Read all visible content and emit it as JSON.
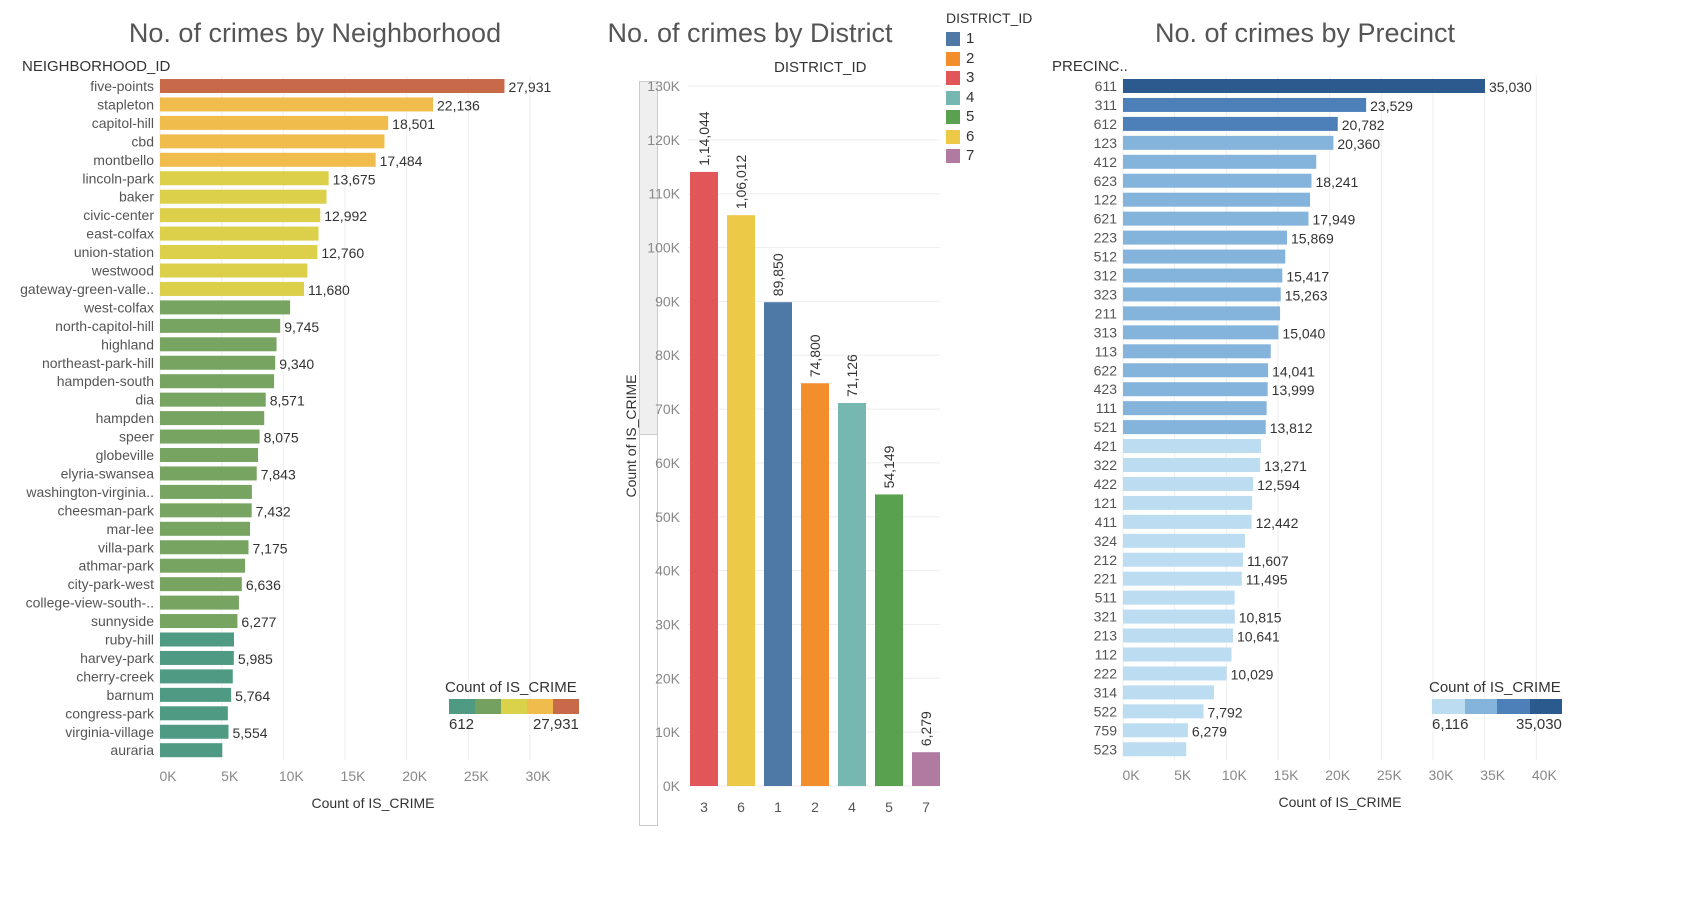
{
  "chart_data": [
    {
      "type": "bar",
      "orientation": "horizontal",
      "title": "No. of crimes by Neighborhood",
      "row_header": "NEIGHBORHOOD_ID",
      "xlabel": "Count of IS_CRIME",
      "xlim": [
        0,
        33000
      ],
      "x_ticks": [
        "0K",
        "5K",
        "10K",
        "15K",
        "20K",
        "25K",
        "30K"
      ],
      "categories": [
        "five-points",
        "stapleton",
        "capitol-hill",
        "cbd",
        "montbello",
        "lincoln-park",
        "baker",
        "civic-center",
        "east-colfax",
        "union-station",
        "westwood",
        "gateway-green-valle..",
        "west-colfax",
        "north-capitol-hill",
        "highland",
        "northeast-park-hill",
        "hampden-south",
        "dia",
        "hampden",
        "speer",
        "globeville",
        "elyria-swansea",
        "washington-virginia..",
        "cheesman-park",
        "mar-lee",
        "villa-park",
        "athmar-park",
        "city-park-west",
        "college-view-south-..",
        "sunnyside",
        "ruby-hill",
        "harvey-park",
        "cherry-creek",
        "barnum",
        "congress-park",
        "virginia-village",
        "auraria"
      ],
      "values": [
        27931,
        22136,
        18501,
        18200,
        17484,
        13675,
        13500,
        12992,
        12850,
        12760,
        11950,
        11680,
        10550,
        9745,
        9450,
        9340,
        9250,
        8571,
        8450,
        8075,
        7950,
        7843,
        7450,
        7432,
        7300,
        7175,
        6900,
        6636,
        6400,
        6277,
        6000,
        5985,
        5900,
        5764,
        5500,
        5554,
        5050
      ],
      "data_labels": [
        "27,931",
        "22,136",
        "18,501",
        "",
        "17,484",
        "13,675",
        "",
        "12,992",
        "",
        "12,760",
        "",
        "11,680",
        "",
        "9,745",
        "",
        "9,340",
        "",
        "8,571",
        "",
        "8,075",
        "",
        "7,843",
        "",
        "7,432",
        "",
        "7,175",
        "",
        "6,636",
        "",
        "6,277",
        "",
        "5,985",
        "",
        "5,764",
        "",
        "5,554",
        ""
      ],
      "color_legend": {
        "title": "Count of IS_CRIME",
        "min_label": "612",
        "max_label": "27,931",
        "colors": [
          "#4e9a82",
          "#74a060",
          "#d9d24a",
          "#f0bc4c",
          "#c86a4a"
        ]
      }
    },
    {
      "type": "bar",
      "orientation": "vertical",
      "title": "No. of crimes by District",
      "column_header": "DISTRICT_ID",
      "ylabel": "Count of IS_CRIME",
      "ylim": [
        0,
        130000
      ],
      "y_ticks": [
        "0K",
        "10K",
        "20K",
        "30K",
        "40K",
        "50K",
        "60K",
        "70K",
        "80K",
        "90K",
        "100K",
        "110K",
        "120K",
        "130K"
      ],
      "categories": [
        "3",
        "6",
        "1",
        "2",
        "4",
        "5",
        "7"
      ],
      "values": [
        114044,
        106012,
        89850,
        74800,
        71126,
        54149,
        6279
      ],
      "data_labels": [
        "1,14,044",
        "1,06,012",
        "89,850",
        "74,800",
        "71,126",
        "54,149",
        "6,279"
      ],
      "colors": [
        "#e15759",
        "#edc948",
        "#4e79a7",
        "#f28e2b",
        "#76b7b2",
        "#59a14f",
        "#b07aa1"
      ],
      "legend": {
        "title": "DISTRICT_ID",
        "items": [
          {
            "label": "1",
            "color": "#4e79a7"
          },
          {
            "label": "2",
            "color": "#f28e2b"
          },
          {
            "label": "3",
            "color": "#e15759"
          },
          {
            "label": "4",
            "color": "#76b7b2"
          },
          {
            "label": "5",
            "color": "#59a14f"
          },
          {
            "label": "6",
            "color": "#edc948"
          },
          {
            "label": "7",
            "color": "#b07aa1"
          }
        ]
      }
    },
    {
      "type": "bar",
      "orientation": "horizontal",
      "title": "No. of crimes by Precinct",
      "row_header": "PRECINC..",
      "xlabel": "Count of IS_CRIME",
      "xlim": [
        0,
        42000
      ],
      "x_ticks": [
        "0K",
        "5K",
        "10K",
        "15K",
        "20K",
        "25K",
        "30K",
        "35K",
        "40K"
      ],
      "categories": [
        "611",
        "311",
        "612",
        "123",
        "412",
        "623",
        "122",
        "621",
        "223",
        "512",
        "312",
        "323",
        "211",
        "313",
        "113",
        "622",
        "423",
        "111",
        "521",
        "421",
        "322",
        "422",
        "121",
        "411",
        "324",
        "212",
        "221",
        "511",
        "321",
        "213",
        "112",
        "222",
        "314",
        "522",
        "759",
        "523"
      ],
      "values": [
        35030,
        23529,
        20782,
        20360,
        18700,
        18241,
        18100,
        17949,
        15869,
        15700,
        15417,
        15263,
        15200,
        15040,
        14300,
        14041,
        13999,
        13900,
        13812,
        13350,
        13271,
        12594,
        12500,
        12442,
        11800,
        11607,
        11495,
        10800,
        10815,
        10641,
        10500,
        10029,
        8800,
        7792,
        6279,
        6116
      ],
      "data_labels": [
        "35,030",
        "23,529",
        "20,782",
        "20,360",
        "",
        "18,241",
        "",
        "17,949",
        "15,869",
        "",
        "15,417",
        "15,263",
        "",
        "15,040",
        "",
        "14,041",
        "13,999",
        "",
        "13,812",
        "",
        "13,271",
        "12,594",
        "",
        "12,442",
        "",
        "11,607",
        "11,495",
        "",
        "10,815",
        "10,641",
        "",
        "10,029",
        "",
        "7,792",
        "6,279",
        ""
      ],
      "color_legend": {
        "title": "Count of IS_CRIME",
        "min_label": "6,116",
        "max_label": "35,030",
        "colors": [
          "#bcdcf2",
          "#84b4dc",
          "#4d80b8",
          "#2a5a8e"
        ]
      }
    }
  ]
}
